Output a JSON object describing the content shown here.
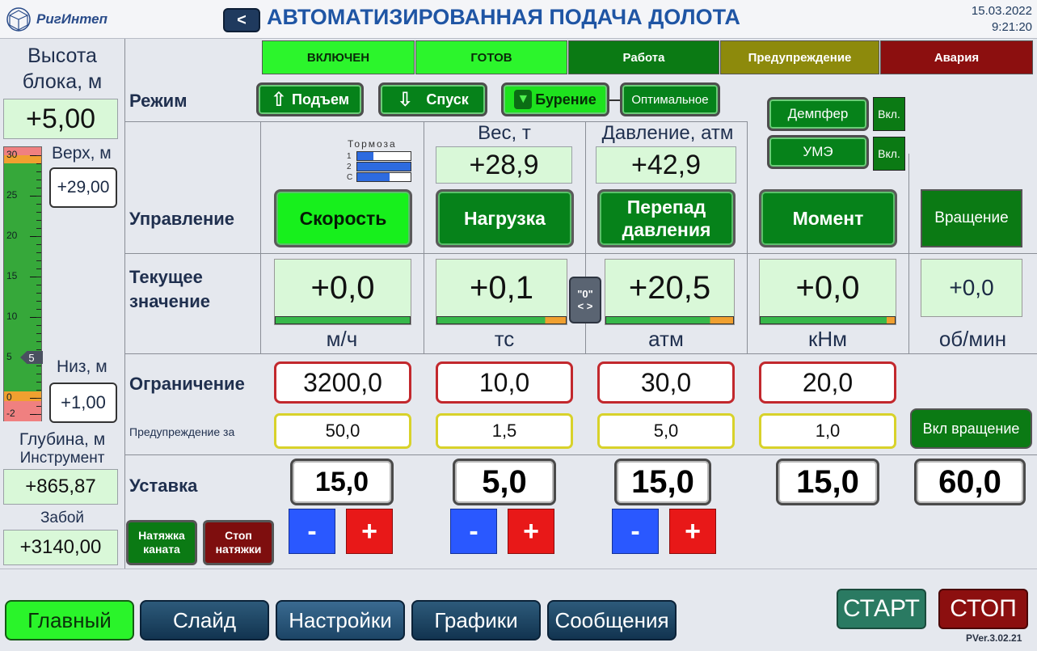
{
  "header": {
    "logo": "РигИнтеп",
    "back": "<",
    "title": "АВТОМАТИЗИРОВАННАЯ ПОДАЧА ДОЛОТА",
    "date": "15.03.2022",
    "time": "9:21:20"
  },
  "status": [
    {
      "label": "ВКЛЮЧЕН",
      "bg": "#2cf52c",
      "fg": "#0a2a0a"
    },
    {
      "label": "ГОТОВ",
      "bg": "#2cf52c",
      "fg": "#0a2a0a"
    },
    {
      "label": "Работа",
      "bg": "#0b7a14",
      "fg": "#ffffff"
    },
    {
      "label": "Предупреждение",
      "bg": "#8d8a0c",
      "fg": "#ffffff"
    },
    {
      "label": "Авария",
      "bg": "#8c0f0f",
      "fg": "#ffffff"
    }
  ],
  "left": {
    "block_title": "Высота блока, м",
    "block_value": "+5,00",
    "top_label": "Верх, м",
    "top_value": "+29,00",
    "bottom_label": "Низ, м",
    "bottom_value": "+1,00",
    "ticks": [
      "30",
      "25",
      "20",
      "15",
      "10",
      "5",
      "0",
      "-2"
    ],
    "marker": "5",
    "depth_title": "Глубина, м",
    "instrument_label": "Инструмент",
    "instrument_value": "+865,87",
    "bottom_hole_label": "Забой",
    "bottom_hole_value": "+3140,00",
    "tension_btn": "Натяжка каната",
    "stop_tension_btn": "Стоп натяжки"
  },
  "mode": {
    "label": "Режим",
    "up": "Подъем",
    "down": "Спуск",
    "drill": "Бурение",
    "optimal": "Оптимальное",
    "damper": "Демпфер",
    "damper_state": "Вкл.",
    "ume": "УМЭ",
    "ume_state": "Вкл."
  },
  "brakes": {
    "title": "Тормоза",
    "rows": [
      "1",
      "2",
      "С"
    ],
    "fills": [
      0.3,
      1.0,
      0.6
    ]
  },
  "weight": {
    "label": "Вес, т",
    "value": "+28,9"
  },
  "pressure": {
    "label": "Давление, атм",
    "value": "+42,9"
  },
  "control": {
    "label": "Управление",
    "speed": "Скорость",
    "load": "Нагрузка",
    "diff": "Перепад давления",
    "moment": "Момент",
    "rotation": "Вращение"
  },
  "current": {
    "label": "Текущее значение",
    "speed": "+0,0",
    "load": "+0,1",
    "diff": "+20,5",
    "moment": "+0,0",
    "rotation": "+0,0",
    "zero_btn": "\"0\"",
    "zero_arrows": "< >",
    "units": [
      "м/ч",
      "тс",
      "атм",
      "кНм",
      "об/мин"
    ]
  },
  "limit": {
    "label": "Ограничение",
    "values": [
      "3200,0",
      "10,0",
      "30,0",
      "20,0"
    ],
    "warn_label": "Предупреждение за",
    "warn_values": [
      "50,0",
      "1,5",
      "5,0",
      "1,0"
    ],
    "rotation_btn": "Вкл вращение"
  },
  "setpoint": {
    "label": "Уставка",
    "values": [
      "15,0",
      "5,0",
      "15,0",
      "15,0",
      "60,0"
    ],
    "minus": "-",
    "plus": "+"
  },
  "nav": {
    "main": "Главный",
    "slide": "Слайд",
    "settings": "Настройки",
    "graphs": "Графики",
    "messages": "Сообщения",
    "start": "СТАРТ",
    "stop": "СТОП",
    "version": "PVer.3.02.21"
  }
}
